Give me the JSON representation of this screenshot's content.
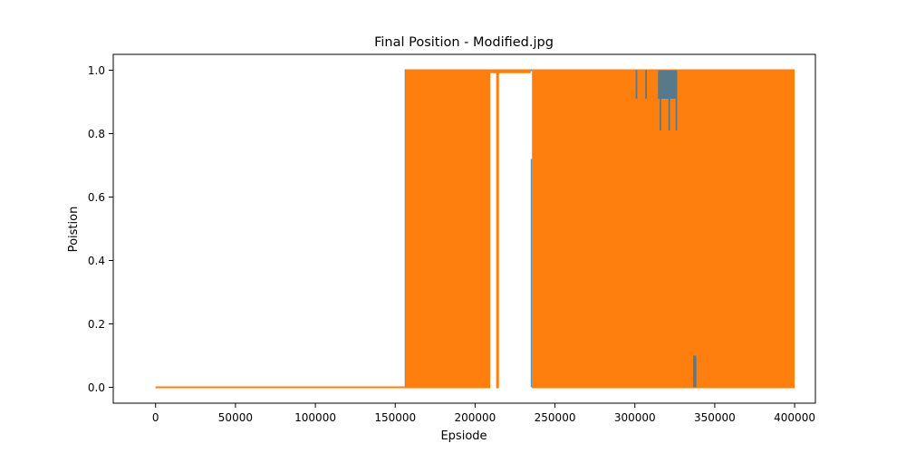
{
  "chart_data": {
    "type": "line",
    "title": "Final Position - Modified.jpg",
    "xlabel": "Epsiode",
    "ylabel": "Poistion",
    "xlim": [
      -26500,
      413000
    ],
    "ylim": [
      -0.05,
      1.05
    ],
    "x_ticks": [
      0,
      50000,
      100000,
      150000,
      200000,
      250000,
      300000,
      350000,
      400000
    ],
    "x_tick_labels": [
      "0",
      "50000",
      "100000",
      "150000",
      "200000",
      "250000",
      "300000",
      "350000",
      "400000"
    ],
    "y_ticks": [
      0.0,
      0.2,
      0.4,
      0.6,
      0.8,
      1.0
    ],
    "y_tick_labels": [
      "0.0",
      "0.2",
      "0.4",
      "0.6",
      "0.8",
      "1.0"
    ],
    "grid": false,
    "legend": "none",
    "series": [
      {
        "color": "#1f77b4",
        "alpha": 0.75,
        "description_points": [
          {
            "x": 0,
            "y": 0
          },
          {
            "x": 156500,
            "y": 0
          },
          {
            "x": 156500,
            "y": 1
          },
          {
            "x": 400000,
            "y": 1
          }
        ],
        "visible_segments": [
          {
            "x0": 300500,
            "x1": 301500,
            "y0": 0.91,
            "y1": 1.0
          },
          {
            "x0": 306500,
            "x1": 307500,
            "y0": 0.91,
            "y1": 1.0
          },
          {
            "x0": 314500,
            "x1": 326500,
            "y0": 0.91,
            "y1": 1.0
          },
          {
            "x0": 315500,
            "x1": 316500,
            "y0": 0.81,
            "y1": 0.91
          },
          {
            "x0": 321000,
            "x1": 322000,
            "y0": 0.81,
            "y1": 0.91
          },
          {
            "x0": 325500,
            "x1": 326500,
            "y0": 0.81,
            "y1": 0.91
          },
          {
            "x0": 336500,
            "x1": 338500,
            "y0": 0.0,
            "y1": 0.1
          },
          {
            "x0": 234800,
            "x1": 235600,
            "y0": 0.0,
            "y1": 0.72
          }
        ]
      },
      {
        "color": "#ff7f0e",
        "alpha": 1.0,
        "baseline": {
          "x0": 0,
          "x1": 156500,
          "y": 0
        },
        "filled_blocks": [
          {
            "x0": 156500,
            "x1": 209500,
            "y0": 0.0,
            "y1": 1.0
          },
          {
            "x0": 209500,
            "x1": 234800,
            "y0": 0.9935,
            "y1": 1.0
          },
          {
            "x0": 213200,
            "x1": 214900,
            "y0": 0.0,
            "y1": 1.0
          },
          {
            "x0": 235600,
            "x1": 400000,
            "y0": 0.0,
            "y1": 1.0
          }
        ]
      }
    ]
  }
}
